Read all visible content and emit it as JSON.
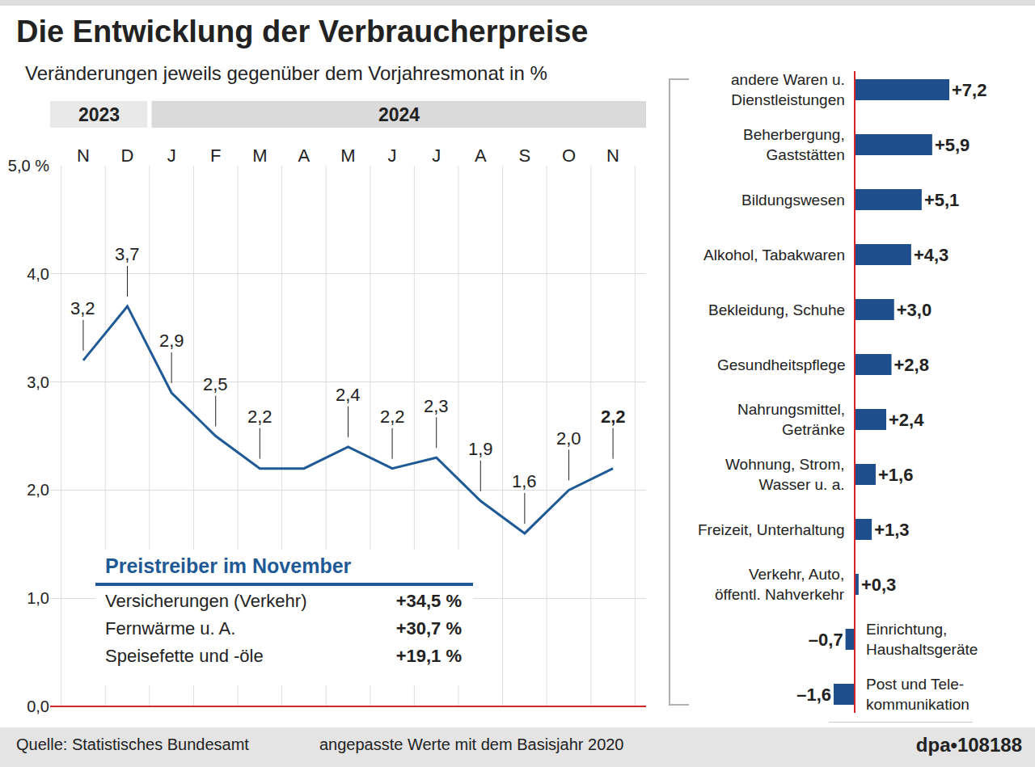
{
  "title": "Die Entwicklung der Verbraucherpreise",
  "subtitle": "Veränderungen jeweils gegenüber dem Vorjahresmonat in %",
  "chart_data": [
    {
      "type": "line",
      "categories": [
        "N",
        "D",
        "J",
        "F",
        "M",
        "A",
        "M",
        "J",
        "J",
        "A",
        "S",
        "O",
        "N"
      ],
      "periods": [
        {
          "label": "2023",
          "count": 2
        },
        {
          "label": "2024",
          "count": 11
        }
      ],
      "values": [
        3.2,
        3.7,
        2.9,
        2.5,
        2.2,
        2.2,
        2.4,
        2.2,
        2.3,
        1.9,
        1.6,
        2.0,
        2.2
      ],
      "value_labels": [
        "3,2",
        "3,7",
        "2,9",
        "2,5",
        "2,2",
        null,
        "2,4",
        "2,2",
        "2,3",
        "1,9",
        "1,6",
        "2,0",
        "2,2"
      ],
      "data_labels": true,
      "color": "#1f5a96",
      "ylim": [
        0,
        5
      ],
      "yticks": [
        {
          "value": 0,
          "label": "0,0"
        },
        {
          "value": 1,
          "label": "1,0"
        },
        {
          "value": 2,
          "label": "2,0"
        },
        {
          "value": 3,
          "label": "3,0"
        },
        {
          "value": 4,
          "label": "4,0"
        },
        {
          "value": 5,
          "label": "5,0 %"
        }
      ],
      "grid": true
    },
    {
      "type": "bar",
      "orientation": "horizontal",
      "categories": [
        "andere Waren u.\nDienstleistungen",
        "Beherbergung,\nGaststätten",
        "Bildungswesen",
        "Alkohol, Tabakwaren",
        "Bekleidung, Schuhe",
        "Gesundheitspflege",
        "Nahrungsmittel,\nGetränke",
        "Wohnung, Strom,\nWasser u. a.",
        "Freizeit, Unterhaltung",
        "Verkehr, Auto,\nöffentl. Nahverkehr",
        "Einrichtung,\nHaushaltsgeräte",
        "Post und Tele-\nkommunikation"
      ],
      "values": [
        7.2,
        5.9,
        5.1,
        4.3,
        3.0,
        2.8,
        2.4,
        1.6,
        1.3,
        0.3,
        -0.7,
        -1.6
      ],
      "value_labels": [
        "+7,2",
        "+5,9",
        "+5,1",
        "+4,3",
        "+3,0",
        "+2,8",
        "+2,4",
        "+1,6",
        "+1,3",
        "+0,3",
        "–0,7",
        "–1,6"
      ],
      "data_labels": true,
      "color": "#1f4e8c",
      "xlim": [
        -2,
        9
      ],
      "tick_labels": false
    }
  ],
  "inset": {
    "title": "Preistreiber im November",
    "rows": [
      [
        "Versicherungen (Verkehr)",
        "+34,5 %"
      ],
      [
        "Fernwärme u. A.",
        "+30,7 %"
      ],
      [
        "Speisefette und -öle",
        "+19,1 %"
      ]
    ]
  },
  "footer": {
    "source": "Quelle: Statistisches Bundesamt",
    "note": "angepasste Werte mit dem Basisjahr 2020",
    "credit": "dpa•108188"
  }
}
